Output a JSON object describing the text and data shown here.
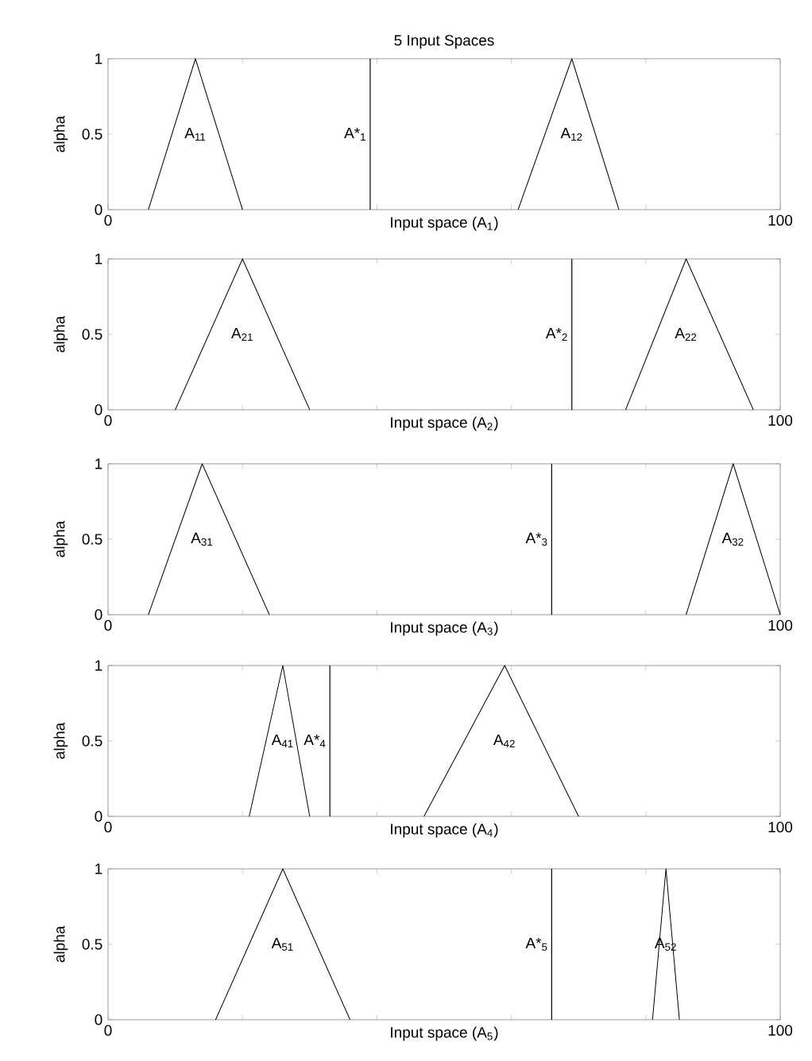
{
  "chart_data": [
    {
      "type": "line",
      "title": "5 Input Spaces",
      "xlabel": "Input space (A$_{1}$)",
      "ylabel": "alpha",
      "xlim": [
        0,
        100
      ],
      "ylim": [
        0,
        1
      ],
      "xticks": [
        0,
        {
          "value": 20,
          "label": null
        },
        {
          "value": 40,
          "label": null
        },
        {
          "value": 60,
          "label": null
        },
        {
          "value": 80,
          "label": null
        },
        100
      ],
      "yticks": [
        0,
        0.5,
        1
      ],
      "series": [
        {
          "name": "A$_{11}$",
          "color": "#000000",
          "x": [
            6,
            13,
            20
          ],
          "values": [
            0,
            1,
            0
          ]
        },
        {
          "name": "A$_{12}$",
          "color": "#000000",
          "x": [
            61,
            69,
            76
          ],
          "values": [
            0,
            1,
            0
          ]
        }
      ],
      "ref_lines": [
        {
          "axis": "x",
          "value": 39,
          "label": "A*$_{1}$",
          "color": "#000000"
        }
      ]
    },
    {
      "type": "line",
      "xlabel": "Input space (A$_{2}$)",
      "ylabel": "alpha",
      "xlim": [
        0,
        100
      ],
      "ylim": [
        0,
        1
      ],
      "xticks": [
        0,
        {
          "value": 20,
          "label": null
        },
        {
          "value": 40,
          "label": null
        },
        {
          "value": 60,
          "label": null
        },
        {
          "value": 80,
          "label": null
        },
        100
      ],
      "yticks": [
        0,
        0.5,
        1
      ],
      "series": [
        {
          "name": "A$_{21}$",
          "color": "#000000",
          "x": [
            10,
            20,
            30
          ],
          "values": [
            0,
            1,
            0
          ]
        },
        {
          "name": "A$_{22}$",
          "color": "#000000",
          "x": [
            77,
            86,
            96
          ],
          "values": [
            0,
            1,
            0
          ]
        }
      ],
      "ref_lines": [
        {
          "axis": "x",
          "value": 69,
          "label": "A*$_{2}$",
          "color": "#000000"
        }
      ]
    },
    {
      "type": "line",
      "xlabel": "Input space (A$_{3}$)",
      "ylabel": "alpha",
      "xlim": [
        0,
        100
      ],
      "ylim": [
        0,
        1
      ],
      "xticks": [
        0,
        {
          "value": 20,
          "label": null
        },
        {
          "value": 40,
          "label": null
        },
        {
          "value": 60,
          "label": null
        },
        {
          "value": 80,
          "label": null
        },
        100
      ],
      "yticks": [
        0,
        0.5,
        1
      ],
      "series": [
        {
          "name": "A$_{31}$",
          "color": "#000000",
          "x": [
            6,
            14,
            24
          ],
          "values": [
            0,
            1,
            0
          ]
        },
        {
          "name": "A$_{32}$",
          "color": "#000000",
          "x": [
            86,
            93,
            100
          ],
          "values": [
            0,
            1,
            0
          ]
        }
      ],
      "ref_lines": [
        {
          "axis": "x",
          "value": 66,
          "label": "A*$_{3}$",
          "color": "#000000"
        }
      ]
    },
    {
      "type": "line",
      "xlabel": "Input space (A$_{4}$)",
      "ylabel": "alpha",
      "xlim": [
        0,
        100
      ],
      "ylim": [
        0,
        1
      ],
      "xticks": [
        0,
        {
          "value": 20,
          "label": null
        },
        {
          "value": 40,
          "label": null
        },
        {
          "value": 60,
          "label": null
        },
        {
          "value": 80,
          "label": null
        },
        100
      ],
      "yticks": [
        0,
        0.5,
        1
      ],
      "series": [
        {
          "name": "A$_{41}$",
          "color": "#000000",
          "x": [
            21,
            26,
            30
          ],
          "values": [
            0,
            1,
            0
          ]
        },
        {
          "name": "A$_{42}$",
          "color": "#000000",
          "x": [
            47,
            59,
            70
          ],
          "values": [
            0,
            1,
            0
          ]
        }
      ],
      "ref_lines": [
        {
          "axis": "x",
          "value": 33,
          "label": "A*$_{4}$",
          "color": "#000000"
        }
      ]
    },
    {
      "type": "line",
      "xlabel": "Input space (A$_{5}$)",
      "ylabel": "alpha",
      "xlim": [
        0,
        100
      ],
      "ylim": [
        0,
        1
      ],
      "xticks": [
        0,
        {
          "value": 20,
          "label": null
        },
        {
          "value": 40,
          "label": null
        },
        {
          "value": 60,
          "label": null
        },
        {
          "value": 80,
          "label": null
        },
        100
      ],
      "yticks": [
        0,
        0.5,
        1
      ],
      "series": [
        {
          "name": "A$_{51}$",
          "color": "#000000",
          "x": [
            16,
            26,
            36
          ],
          "values": [
            0,
            1,
            0
          ]
        },
        {
          "name": "A$_{52}$",
          "color": "#000000",
          "x": [
            81,
            83,
            85
          ],
          "values": [
            0,
            1,
            0
          ]
        }
      ],
      "ref_lines": [
        {
          "axis": "x",
          "value": 66,
          "label": "A*$_{5}$",
          "color": "#000000"
        }
      ]
    }
  ]
}
